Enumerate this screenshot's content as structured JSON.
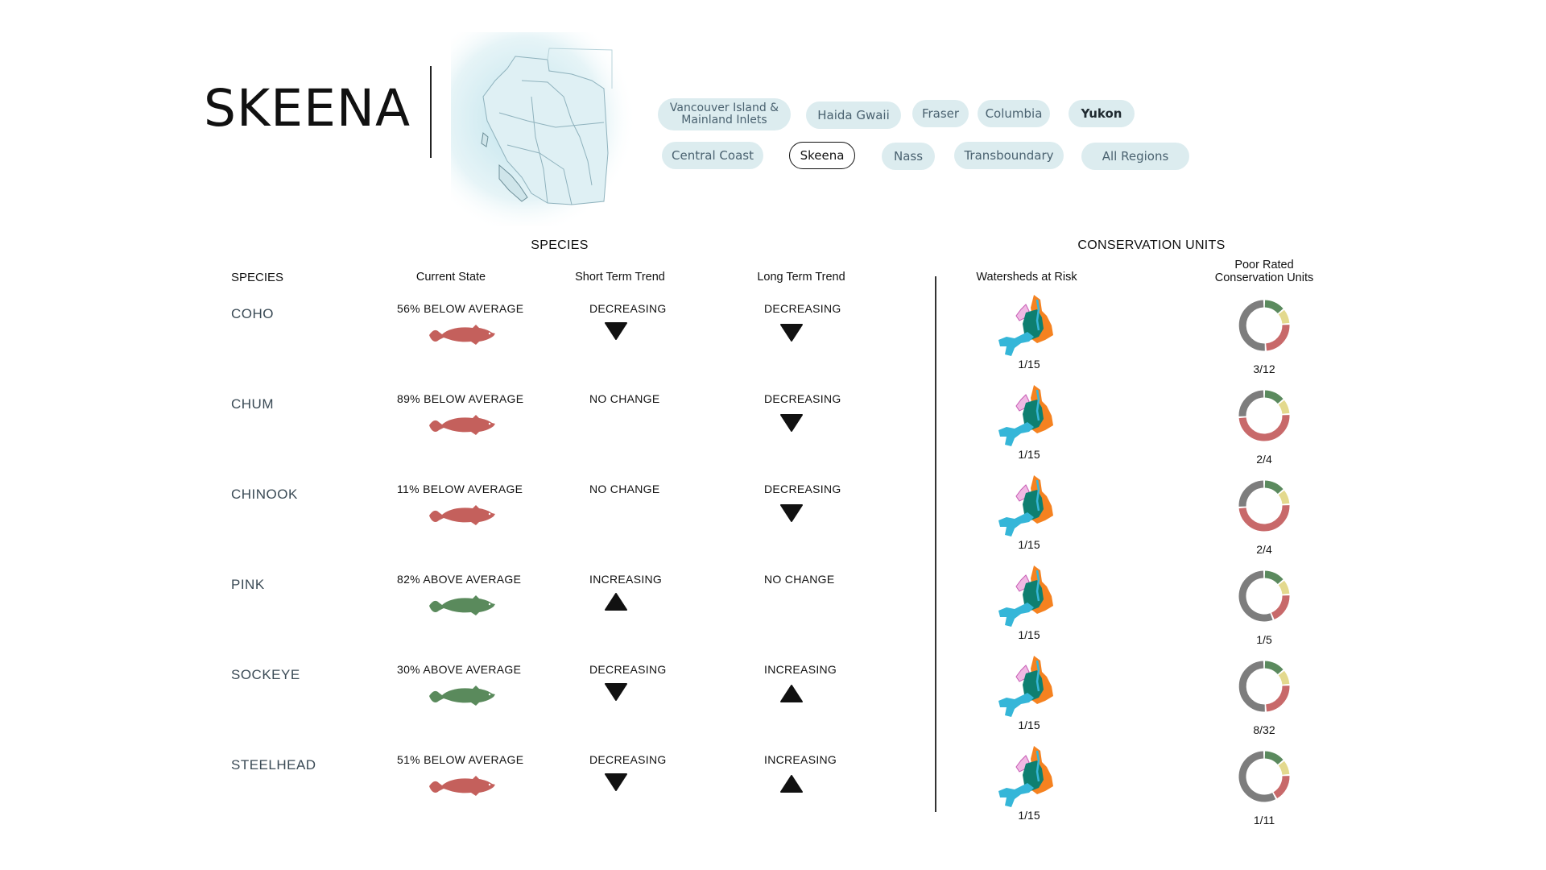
{
  "region": {
    "title": "SKEENA"
  },
  "region_buttons": [
    {
      "label": "Vancouver Island &\nMainland Inlets",
      "active": false
    },
    {
      "label": "Haida Gwaii",
      "active": false
    },
    {
      "label": "Fraser",
      "active": false
    },
    {
      "label": "Columbia",
      "active": false
    },
    {
      "label": "Yukon",
      "active": false
    },
    {
      "label": "Central Coast",
      "active": false
    },
    {
      "label": "Skeena",
      "active": true
    },
    {
      "label": "Nass",
      "active": false
    },
    {
      "label": "Transboundary",
      "active": false
    },
    {
      "label": "All Regions",
      "active": false
    }
  ],
  "species_section": {
    "title": "SPECIES",
    "headers": {
      "species": "SPECIES",
      "current_state": "Current State",
      "short_term": "Short Term Trend",
      "long_term": "Long Term Trend"
    }
  },
  "cu_section": {
    "title": "CONSERVATION UNITS",
    "headers": {
      "watersheds": "Watersheds at Risk",
      "poor_rated": "Poor Rated\nConservation Units"
    }
  },
  "colors": {
    "below": "#c4605c",
    "above": "#5a8a5c",
    "donut_gray": "#7d7d7d",
    "donut_red": "#c8696a",
    "donut_green": "#5b8a5e",
    "donut_yellow": "#e3d98e",
    "ws_orange": "#f58220",
    "ws_teal": "#0e7f70",
    "ws_blue": "#35b6d8",
    "ws_pink": "#e99bd8"
  },
  "rows": [
    {
      "species": "COHO",
      "state": "56% BELOW AVERAGE",
      "state_dir": "below",
      "short_term": "DECREASING",
      "short_arrow": "down",
      "long_term": "DECREASING",
      "long_arrow": "down",
      "watersheds": "1/15",
      "poor_cu": "3/12"
    },
    {
      "species": "CHUM",
      "state": "89% BELOW AVERAGE",
      "state_dir": "below",
      "short_term": "NO CHANGE",
      "short_arrow": "none",
      "long_term": "DECREASING",
      "long_arrow": "down",
      "watersheds": "1/15",
      "poor_cu": "2/4"
    },
    {
      "species": "CHINOOK",
      "state": "11% BELOW AVERAGE",
      "state_dir": "below",
      "short_term": "NO CHANGE",
      "short_arrow": "none",
      "long_term": "DECREASING",
      "long_arrow": "down",
      "watersheds": "1/15",
      "poor_cu": "2/4"
    },
    {
      "species": "PINK",
      "state": "82% ABOVE AVERAGE",
      "state_dir": "above",
      "short_term": "INCREASING",
      "short_arrow": "up",
      "long_term": "NO CHANGE",
      "long_arrow": "none",
      "watersheds": "1/15",
      "poor_cu": "1/5"
    },
    {
      "species": "SOCKEYE",
      "state": "30% ABOVE AVERAGE",
      "state_dir": "above",
      "short_term": "DECREASING",
      "short_arrow": "down",
      "long_term": "INCREASING",
      "long_arrow": "up",
      "watersheds": "1/15",
      "poor_cu": "8/32"
    },
    {
      "species": "STEELHEAD",
      "state": "51% BELOW AVERAGE",
      "state_dir": "below",
      "short_term": "DECREASING",
      "short_arrow": "down",
      "long_term": "INCREASING",
      "long_arrow": "up",
      "watersheds": "1/15",
      "poor_cu": "1/11"
    }
  ]
}
